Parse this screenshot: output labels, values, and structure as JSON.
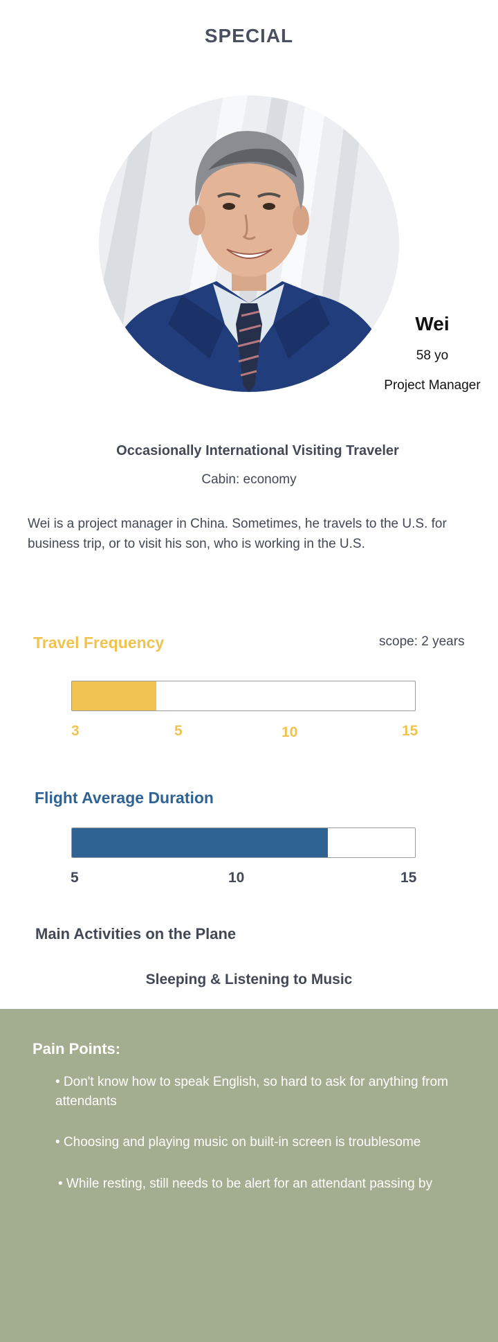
{
  "header": {
    "title": "SPECIAL"
  },
  "persona": {
    "name": "Wei",
    "age": "58 yo",
    "job": "Project Manager",
    "traveler_type": "Occasionally International Visiting Traveler",
    "cabin": "Cabin: economy",
    "description": "Wei is a project manager in China. Sometimes, he travels to the U.S. for business trip, or to visit his son, who is working in the U.S."
  },
  "travel_frequency": {
    "label": "Travel Frequency",
    "scope": "scope: 2 years",
    "color": "#f0c350",
    "ticks": [
      "3",
      "5",
      "10",
      "15"
    ],
    "fill_fraction": 0.245
  },
  "flight_duration": {
    "label": "Flight Average Duration",
    "color": "#2f6393",
    "ticks": [
      "5",
      "10",
      "15"
    ],
    "fill_fraction": 0.745
  },
  "activities": {
    "label": "Main Activities on the Plane",
    "value": "Sleeping & Listening to Music"
  },
  "pain_points": {
    "title": "Pain Points:",
    "background": "#a3ad8f",
    "items": [
      "• Don't know how to speak English, so hard to ask for anything from attendants",
      "• Choosing and playing music on built-in screen is troublesome",
      "• While resting, still needs to be alert for an attendant passing by"
    ]
  }
}
